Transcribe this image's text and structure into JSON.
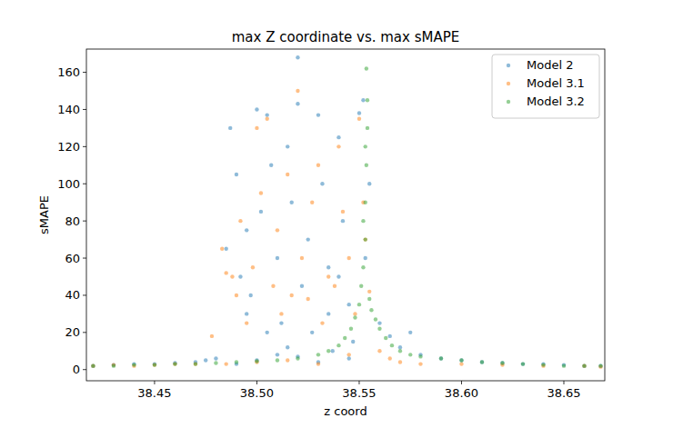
{
  "chart_data": {
    "type": "scatter",
    "title": "max Z coordinate vs. max sMAPE",
    "x_label": "z coord",
    "y_label": "sMAPE",
    "xlim": [
      38.4167,
      38.67
    ],
    "ylim": [
      -6,
      172.5
    ],
    "xticks": [
      38.45,
      {
        "value": 38.5,
        "label": "38.50"
      },
      38.55,
      {
        "value": 38.6,
        "label": "38.60"
      },
      38.65
    ],
    "yticks": [
      0,
      20,
      40,
      60,
      80,
      100,
      120,
      140,
      160
    ],
    "legend": "upper right",
    "grid": false,
    "marker": "circle",
    "series": [
      {
        "name": "Model 2",
        "color": "#1f77b4",
        "x": [
          38.42,
          38.43,
          38.44,
          38.45,
          38.46,
          38.47,
          38.475,
          38.48,
          38.485,
          38.487,
          38.49,
          38.492,
          38.495,
          38.497,
          38.5,
          38.502,
          38.505,
          38.507,
          38.51,
          38.512,
          38.515,
          38.517,
          38.52,
          38.52,
          38.522,
          38.525,
          38.527,
          38.53,
          38.532,
          38.535,
          38.537,
          38.54,
          38.542,
          38.545,
          38.547,
          38.55,
          38.552,
          38.553,
          38.555,
          38.5,
          38.51,
          38.49,
          38.53,
          38.545,
          38.52,
          38.535,
          38.505,
          38.495,
          38.515,
          38.54,
          38.56,
          38.565,
          38.57,
          38.575,
          38.58,
          38.59,
          38.6,
          38.61,
          38.62,
          38.63,
          38.64,
          38.65,
          38.66,
          38.668
        ],
        "values": [
          2,
          2.5,
          3,
          3,
          3.5,
          4,
          5,
          6,
          65,
          130,
          105,
          50,
          30,
          40,
          140,
          85,
          137,
          110,
          60,
          25,
          12,
          90,
          168,
          143,
          45,
          70,
          20,
          137,
          100,
          55,
          10,
          125,
          80,
          35,
          15,
          138,
          145,
          60,
          100,
          5,
          8,
          3,
          4,
          6,
          7,
          30,
          20,
          75,
          120,
          50,
          25,
          18,
          12,
          20,
          8,
          6,
          5,
          4,
          3.5,
          3,
          3,
          2.5,
          2,
          2
        ]
      },
      {
        "name": "Model 3.1",
        "color": "#ff7f0e",
        "x": [
          38.42,
          38.43,
          38.44,
          38.45,
          38.46,
          38.47,
          38.478,
          38.483,
          38.485,
          38.488,
          38.49,
          38.492,
          38.495,
          38.498,
          38.5,
          38.502,
          38.505,
          38.508,
          38.51,
          38.512,
          38.515,
          38.517,
          38.52,
          38.522,
          38.525,
          38.527,
          38.53,
          38.532,
          38.535,
          38.538,
          38.54,
          38.542,
          38.545,
          38.548,
          38.55,
          38.552,
          38.553,
          38.555,
          38.485,
          38.5,
          38.515,
          38.53,
          38.545,
          38.56,
          38.565,
          38.57,
          38.58,
          38.6,
          38.62,
          38.64,
          38.66,
          38.668
        ],
        "values": [
          2,
          2.5,
          2,
          2.5,
          3,
          3,
          18,
          65,
          52,
          50,
          40,
          80,
          25,
          55,
          130,
          95,
          135,
          45,
          75,
          30,
          105,
          40,
          150,
          60,
          38,
          90,
          110,
          25,
          50,
          45,
          120,
          85,
          60,
          30,
          135,
          90,
          70,
          42,
          3,
          4,
          5,
          3,
          8,
          10,
          6,
          4,
          3,
          3,
          2.5,
          2,
          2,
          1.5
        ]
      },
      {
        "name": "Model 3.2",
        "color": "#2ca02c",
        "x": [
          38.42,
          38.43,
          38.44,
          38.45,
          38.46,
          38.47,
          38.48,
          38.49,
          38.5,
          38.51,
          38.52,
          38.53,
          38.535,
          38.54,
          38.543,
          38.546,
          38.548,
          38.55,
          38.551,
          38.552,
          38.553,
          38.553,
          38.5535,
          38.554,
          38.554,
          38.5535,
          38.553,
          38.552,
          38.555,
          38.556,
          38.558,
          38.56,
          38.563,
          38.566,
          38.57,
          38.575,
          38.58,
          38.59,
          38.6,
          38.61,
          38.62,
          38.63,
          38.64,
          38.65,
          38.66,
          38.668
        ],
        "values": [
          2,
          2,
          2.5,
          2.5,
          3,
          3,
          3.5,
          4,
          4.5,
          5,
          6,
          8,
          10,
          13,
          17,
          22,
          28,
          35,
          45,
          55,
          70,
          90,
          110,
          130,
          145,
          162,
          120,
          80,
          38,
          32,
          27,
          22,
          17,
          13,
          10,
          8,
          7,
          6,
          5,
          4,
          3.5,
          3,
          2.5,
          2,
          2,
          2
        ]
      }
    ]
  }
}
